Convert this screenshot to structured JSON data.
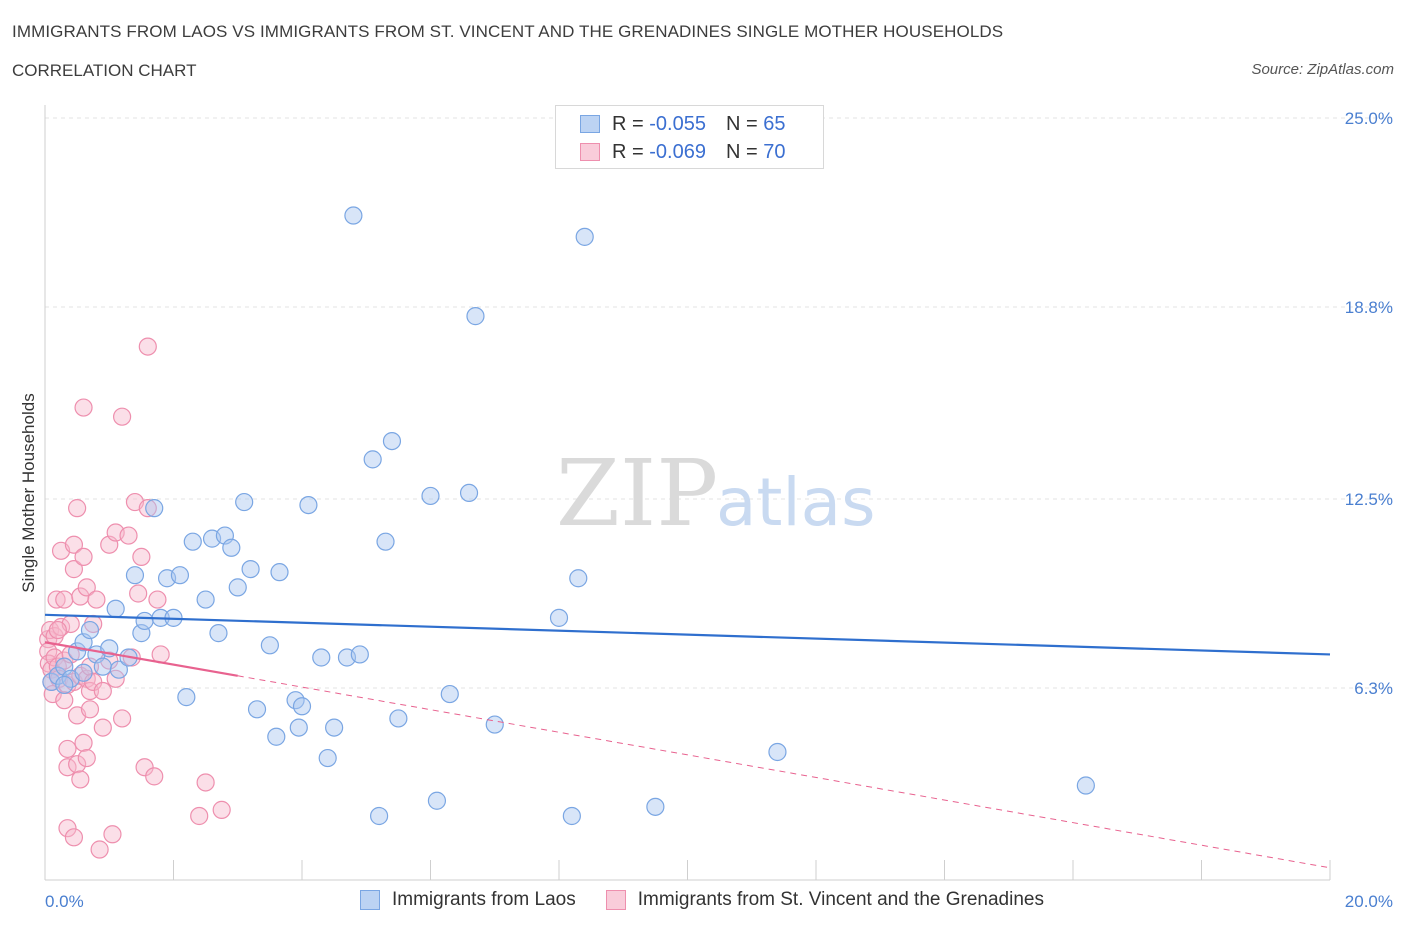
{
  "title": "IMMIGRANTS FROM LAOS VS IMMIGRANTS FROM ST. VINCENT AND THE GRENADINES SINGLE MOTHER HOUSEHOLDS",
  "subtitle": "CORRELATION CHART",
  "source": "Source: ZipAtlas.com",
  "watermark": {
    "zip": "ZIP",
    "atlas": "atlas"
  },
  "legend": {
    "row1": {
      "r_label": "R = ",
      "r_value": "-0.055",
      "n_label": "N = ",
      "n_value": "65"
    },
    "row2": {
      "r_label": "R = ",
      "r_value": "-0.069",
      "n_label": "N = ",
      "n_value": "70"
    }
  },
  "colors": {
    "blue_fill": "#a9c6f0",
    "blue_stroke": "#7aa6e3",
    "blue_line": "#2f6fce",
    "pink_fill": "#f6b8cb",
    "pink_stroke": "#ee8fae",
    "pink_line": "#e8628f"
  },
  "chart_data": {
    "type": "scatter",
    "ylabel": "Single Mother Households",
    "xlim": [
      0,
      20
    ],
    "ylim": [
      0,
      25
    ],
    "x_tick_labels": [
      "0.0%",
      "20.0%"
    ],
    "y_ticks": [
      {
        "value": 6.3,
        "label": "6.3%"
      },
      {
        "value": 12.5,
        "label": "12.5%"
      },
      {
        "value": 18.8,
        "label": "18.8%"
      },
      {
        "value": 25.0,
        "label": "25.0%"
      }
    ],
    "grid": "horizontal dashed",
    "series": [
      {
        "name": "Immigrants from Laos",
        "color": "#a9c6f0",
        "trend": {
          "x": [
            0,
            20
          ],
          "y": [
            8.7,
            7.4
          ]
        },
        "points": [
          [
            0.1,
            6.5
          ],
          [
            0.2,
            6.7
          ],
          [
            0.3,
            7.0
          ],
          [
            0.4,
            6.6
          ],
          [
            0.5,
            7.5
          ],
          [
            0.6,
            6.8
          ],
          [
            0.6,
            7.8
          ],
          [
            0.7,
            8.2
          ],
          [
            0.8,
            7.4
          ],
          [
            0.9,
            7.0
          ],
          [
            1.0,
            7.6
          ],
          [
            1.1,
            8.9
          ],
          [
            1.15,
            6.9
          ],
          [
            1.3,
            7.3
          ],
          [
            1.4,
            10.0
          ],
          [
            1.5,
            8.1
          ],
          [
            1.55,
            8.5
          ],
          [
            1.7,
            12.2
          ],
          [
            1.8,
            8.6
          ],
          [
            1.9,
            9.9
          ],
          [
            2.0,
            8.6
          ],
          [
            2.1,
            10.0
          ],
          [
            2.2,
            6.0
          ],
          [
            2.3,
            11.1
          ],
          [
            2.5,
            9.2
          ],
          [
            2.6,
            11.2
          ],
          [
            2.7,
            8.1
          ],
          [
            2.8,
            11.3
          ],
          [
            2.9,
            10.9
          ],
          [
            3.0,
            9.6
          ],
          [
            3.1,
            12.4
          ],
          [
            3.2,
            10.2
          ],
          [
            3.3,
            5.6
          ],
          [
            3.5,
            7.7
          ],
          [
            3.6,
            4.7
          ],
          [
            3.65,
            10.1
          ],
          [
            3.9,
            5.9
          ],
          [
            3.95,
            5.0
          ],
          [
            4.0,
            5.7
          ],
          [
            4.1,
            12.3
          ],
          [
            4.3,
            7.3
          ],
          [
            4.4,
            4.0
          ],
          [
            4.5,
            5.0
          ],
          [
            4.7,
            7.3
          ],
          [
            4.8,
            21.8
          ],
          [
            4.9,
            7.4
          ],
          [
            5.1,
            13.8
          ],
          [
            5.2,
            2.1
          ],
          [
            5.3,
            11.1
          ],
          [
            5.4,
            14.4
          ],
          [
            5.5,
            5.3
          ],
          [
            6.0,
            12.6
          ],
          [
            6.1,
            2.6
          ],
          [
            6.3,
            6.1
          ],
          [
            6.6,
            12.7
          ],
          [
            6.7,
            18.5
          ],
          [
            7.0,
            5.1
          ],
          [
            8.0,
            8.6
          ],
          [
            8.2,
            2.1
          ],
          [
            8.3,
            9.9
          ],
          [
            8.4,
            21.1
          ],
          [
            9.5,
            2.4
          ],
          [
            11.4,
            4.2
          ],
          [
            16.2,
            3.1
          ],
          [
            0.3,
            6.4
          ]
        ]
      },
      {
        "name": "Immigrants from St. Vincent and the Grenadines",
        "color": "#f6b8cb",
        "trend": {
          "x": [
            0,
            3.0
          ],
          "y": [
            7.8,
            6.7
          ]
        },
        "trend_extended": {
          "x": [
            3.0,
            20
          ],
          "y": [
            6.7,
            0.4
          ]
        },
        "points": [
          [
            0.05,
            7.9
          ],
          [
            0.05,
            7.5
          ],
          [
            0.06,
            7.1
          ],
          [
            0.08,
            8.2
          ],
          [
            0.1,
            6.9
          ],
          [
            0.1,
            6.5
          ],
          [
            0.12,
            6.1
          ],
          [
            0.15,
            7.3
          ],
          [
            0.15,
            8.0
          ],
          [
            0.18,
            9.2
          ],
          [
            0.2,
            7.0
          ],
          [
            0.22,
            6.6
          ],
          [
            0.25,
            8.3
          ],
          [
            0.25,
            10.8
          ],
          [
            0.3,
            9.2
          ],
          [
            0.3,
            7.2
          ],
          [
            0.35,
            6.4
          ],
          [
            0.35,
            4.3
          ],
          [
            0.35,
            3.7
          ],
          [
            0.35,
            1.7
          ],
          [
            0.4,
            8.4
          ],
          [
            0.4,
            7.4
          ],
          [
            0.45,
            11.0
          ],
          [
            0.45,
            10.2
          ],
          [
            0.45,
            6.5
          ],
          [
            0.45,
            1.4
          ],
          [
            0.5,
            12.2
          ],
          [
            0.5,
            3.8
          ],
          [
            0.5,
            5.4
          ],
          [
            0.55,
            6.7
          ],
          [
            0.55,
            9.3
          ],
          [
            0.55,
            3.3
          ],
          [
            0.6,
            10.6
          ],
          [
            0.6,
            15.5
          ],
          [
            0.6,
            4.5
          ],
          [
            0.65,
            6.6
          ],
          [
            0.65,
            4.0
          ],
          [
            0.65,
            9.6
          ],
          [
            0.7,
            6.2
          ],
          [
            0.7,
            7.0
          ],
          [
            0.7,
            5.6
          ],
          [
            0.75,
            6.5
          ],
          [
            0.75,
            8.4
          ],
          [
            0.8,
            9.2
          ],
          [
            0.85,
            1.0
          ],
          [
            0.9,
            6.2
          ],
          [
            0.9,
            5.0
          ],
          [
            1.0,
            11.0
          ],
          [
            1.0,
            7.2
          ],
          [
            1.05,
            1.5
          ],
          [
            1.1,
            11.4
          ],
          [
            1.1,
            6.6
          ],
          [
            1.2,
            5.3
          ],
          [
            1.2,
            15.2
          ],
          [
            1.3,
            11.3
          ],
          [
            1.35,
            7.3
          ],
          [
            1.4,
            12.4
          ],
          [
            1.5,
            10.6
          ],
          [
            1.55,
            3.7
          ],
          [
            1.6,
            17.5
          ],
          [
            1.6,
            12.2
          ],
          [
            1.7,
            3.4
          ],
          [
            1.75,
            9.2
          ],
          [
            1.8,
            7.4
          ],
          [
            2.4,
            2.1
          ],
          [
            2.5,
            3.2
          ],
          [
            2.75,
            2.3
          ],
          [
            1.45,
            9.4
          ],
          [
            0.2,
            8.2
          ],
          [
            0.3,
            5.9
          ]
        ]
      }
    ]
  },
  "bottom_legend": {
    "laos": "Immigrants from Laos",
    "svg": "Immigrants from St. Vincent and the Grenadines"
  }
}
